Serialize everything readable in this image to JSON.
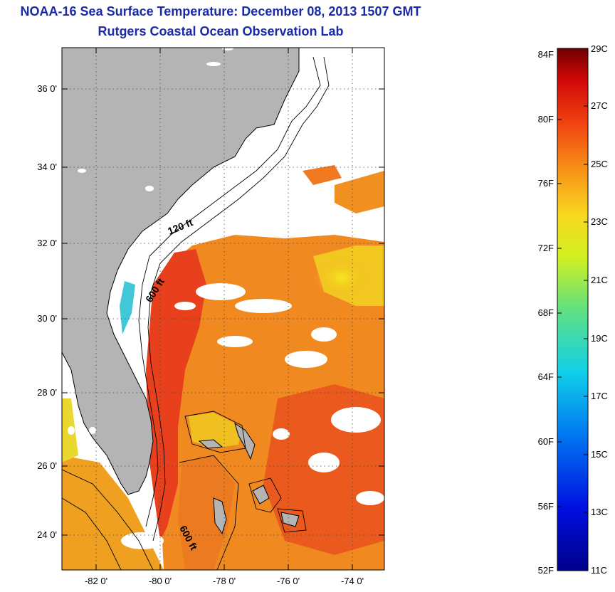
{
  "header": {
    "title": "NOAA-16 Sea Surface Temperature:  December 08, 2013 1507 GMT",
    "subtitle": "Rutgers Coastal Ocean Observation Lab"
  },
  "map": {
    "lat_labels": [
      "36 0'",
      "34 0'",
      "32 0'",
      "30 0'",
      "28 0'",
      "26 0'",
      "24 0'"
    ],
    "lon_labels": [
      "-82 0'",
      "-80 0'",
      "-78 0'",
      "-76 0'",
      "-74 0'"
    ],
    "contour_labels": {
      "c120": "120 ft",
      "c600a": "600 ft",
      "c600b": "600 ft"
    },
    "colors": {
      "land": "#b4b4b4",
      "water_nodata": "#ffffff",
      "warm_core": "#e63a1e",
      "orange": "#f08a1e",
      "yellow": "#f6e01c",
      "cyan": "#30c8e0"
    }
  },
  "colorbar": {
    "fahrenheit": [
      "84F",
      "80F",
      "76F",
      "72F",
      "68F",
      "64F",
      "60F",
      "56F",
      "52F"
    ],
    "celsius": [
      "29C",
      "27C",
      "25C",
      "23C",
      "21C",
      "19C",
      "17C",
      "15C",
      "13C",
      "11C"
    ]
  }
}
